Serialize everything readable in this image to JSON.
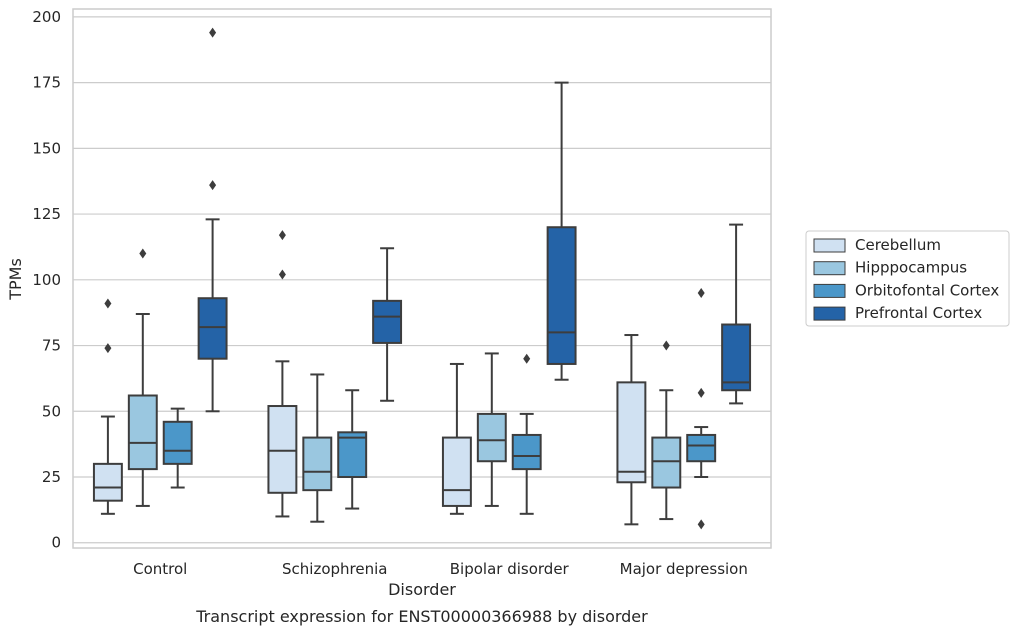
{
  "chart_data": {
    "type": "box",
    "xlabel": "Disorder",
    "ylabel": "TPMs",
    "caption": "Transcript expression for ENST00000366988 by disorder",
    "categories": [
      "Control",
      "Schizophrenia",
      "Bipolar disorder",
      "Major depression"
    ],
    "ylim": [
      -2,
      203
    ],
    "yticks": [
      0,
      25,
      50,
      75,
      100,
      125,
      150,
      175,
      200
    ],
    "grid": true,
    "legend_position": "right",
    "colors": {
      "Cerebellum": "#d0e1f2",
      "Hipppocampus": "#9ac7e0",
      "Orbitofontal Cortex": "#4b97c9",
      "Prefrontal Cortex": "#2463a7"
    },
    "series": [
      {
        "name": "Cerebellum",
        "boxes": [
          {
            "whislo": 11,
            "q1": 16,
            "med": 21,
            "q3": 30,
            "whishi": 48,
            "fliers": [
              74,
              91
            ]
          },
          {
            "whislo": 10,
            "q1": 19,
            "med": 35,
            "q3": 52,
            "whishi": 69,
            "fliers": [
              102,
              117
            ]
          },
          {
            "whislo": 11,
            "q1": 14,
            "med": 20,
            "q3": 40,
            "whishi": 68,
            "fliers": []
          },
          {
            "whislo": 7,
            "q1": 23,
            "med": 27,
            "q3": 61,
            "whishi": 79,
            "fliers": []
          }
        ]
      },
      {
        "name": "Hipppocampus",
        "boxes": [
          {
            "whislo": 14,
            "q1": 28,
            "med": 38,
            "q3": 56,
            "whishi": 87,
            "fliers": [
              110
            ]
          },
          {
            "whislo": 8,
            "q1": 20,
            "med": 27,
            "q3": 40,
            "whishi": 64,
            "fliers": []
          },
          {
            "whislo": 14,
            "q1": 31,
            "med": 39,
            "q3": 49,
            "whishi": 72,
            "fliers": []
          },
          {
            "whislo": 9,
            "q1": 21,
            "med": 31,
            "q3": 40,
            "whishi": 58,
            "fliers": [
              75
            ]
          }
        ]
      },
      {
        "name": "Orbitofontal Cortex",
        "boxes": [
          {
            "whislo": 21,
            "q1": 30,
            "med": 35,
            "q3": 46,
            "whishi": 51,
            "fliers": []
          },
          {
            "whislo": 13,
            "q1": 25,
            "med": 40,
            "q3": 42,
            "whishi": 58,
            "fliers": []
          },
          {
            "whislo": 11,
            "q1": 28,
            "med": 33,
            "q3": 41,
            "whishi": 49,
            "fliers": [
              70
            ]
          },
          {
            "whislo": 25,
            "q1": 31,
            "med": 37,
            "q3": 41,
            "whishi": 44,
            "fliers": [
              7,
              57,
              95
            ]
          }
        ]
      },
      {
        "name": "Prefrontal Cortex",
        "boxes": [
          {
            "whislo": 50,
            "q1": 70,
            "med": 82,
            "q3": 93,
            "whishi": 123,
            "fliers": [
              136,
              194
            ]
          },
          {
            "whislo": 54,
            "q1": 76,
            "med": 86,
            "q3": 92,
            "whishi": 112,
            "fliers": []
          },
          {
            "whislo": 62,
            "q1": 68,
            "med": 80,
            "q3": 120,
            "whishi": 175,
            "fliers": []
          },
          {
            "whislo": 53,
            "q1": 58,
            "med": 61,
            "q3": 83,
            "whishi": 121,
            "fliers": []
          }
        ]
      }
    ]
  }
}
